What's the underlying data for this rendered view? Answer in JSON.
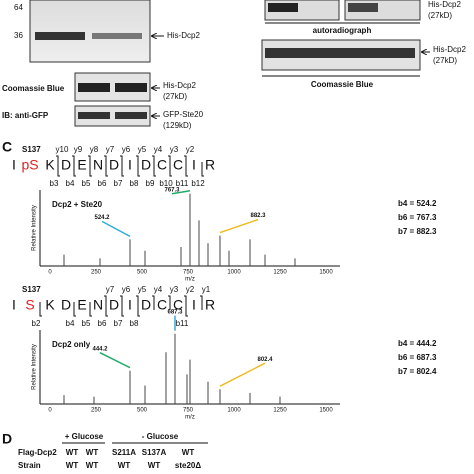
{
  "panel_b_left": {
    "markers": [
      "64",
      "36"
    ],
    "main_label": "His-Dcp2",
    "coomassie": "Coomassie Blue",
    "coomassie_label": "His-Dcp2",
    "coomassie_size": "(27kD)",
    "ib": "IB: anti-GFP",
    "ib_label": "GFP-Ste20",
    "ib_size": "(129kD)"
  },
  "panel_b_right": {
    "top_label": "His-Dcp2",
    "top_size": "(27kD)",
    "autoradiograph": "autoradiograph",
    "coomassie_label": "His-Dcp2",
    "coomassie_size": "(27kD)",
    "coomassie": "Coomassie Blue"
  },
  "panel_c": {
    "letter": "C",
    "spectra": [
      {
        "site": "S137",
        "residues": [
          "I",
          "pS",
          "K",
          "D",
          "E",
          "N",
          "D",
          "I",
          "D",
          "C",
          "C",
          "I",
          "R"
        ],
        "y_ions": [
          "y10",
          "y9",
          "y8",
          "y7",
          "y6",
          "y5",
          "y4",
          "y3",
          "y2"
        ],
        "b_ions": [
          "b3",
          "b4",
          "b5",
          "b6",
          "b7",
          "b8",
          "b9",
          "b10",
          "b11",
          "b12"
        ],
        "sample": "Dcp2 + Ste20",
        "annotations": [
          "b4 = 524.2",
          "b6 = 767.3",
          "b7 = 882.3"
        ],
        "peak_labels": [
          "767.3",
          "524.2",
          "882.3"
        ],
        "y_axis_label": "Relative Intensity",
        "x_axis_label": "m/z",
        "x_ticks": [
          "0",
          "250",
          "500",
          "750",
          "1000",
          "1250",
          "1500"
        ]
      },
      {
        "site": "S137",
        "residues": [
          "I",
          "S",
          "K",
          "D",
          "E",
          "N",
          "D",
          "I",
          "D",
          "C",
          "C",
          "I",
          "R"
        ],
        "y_ions": [
          "y7",
          "y6",
          "y5",
          "y4",
          "y3",
          "y2",
          "y1"
        ],
        "b_ions": [
          "b2",
          "b4",
          "b5",
          "b6",
          "b7",
          "b8",
          "b11"
        ],
        "sample": "Dcp2 only",
        "annotations": [
          "b4 = 444.2",
          "b6 = 687.3",
          "b7 = 802.4"
        ],
        "peak_labels": [
          "444.2",
          "687.3",
          "802.4"
        ],
        "y_axis_label": "Relative Intensity",
        "x_axis_label": "m/z",
        "x_ticks": [
          "0",
          "250",
          "500",
          "750",
          "1000",
          "1250",
          "1500"
        ]
      }
    ]
  },
  "panel_d": {
    "letter": "D",
    "plus_glucose": "+ Glucose",
    "minus_glucose": "- Glucose",
    "row_labels": [
      "Flag-Dcp2",
      "Strain"
    ],
    "flag_dcp2": [
      "WT",
      "WT",
      "S211A",
      "S137A",
      "WT"
    ],
    "strain": [
      "WT",
      "WT",
      "WT",
      "WT",
      "ste20Δ"
    ]
  }
}
